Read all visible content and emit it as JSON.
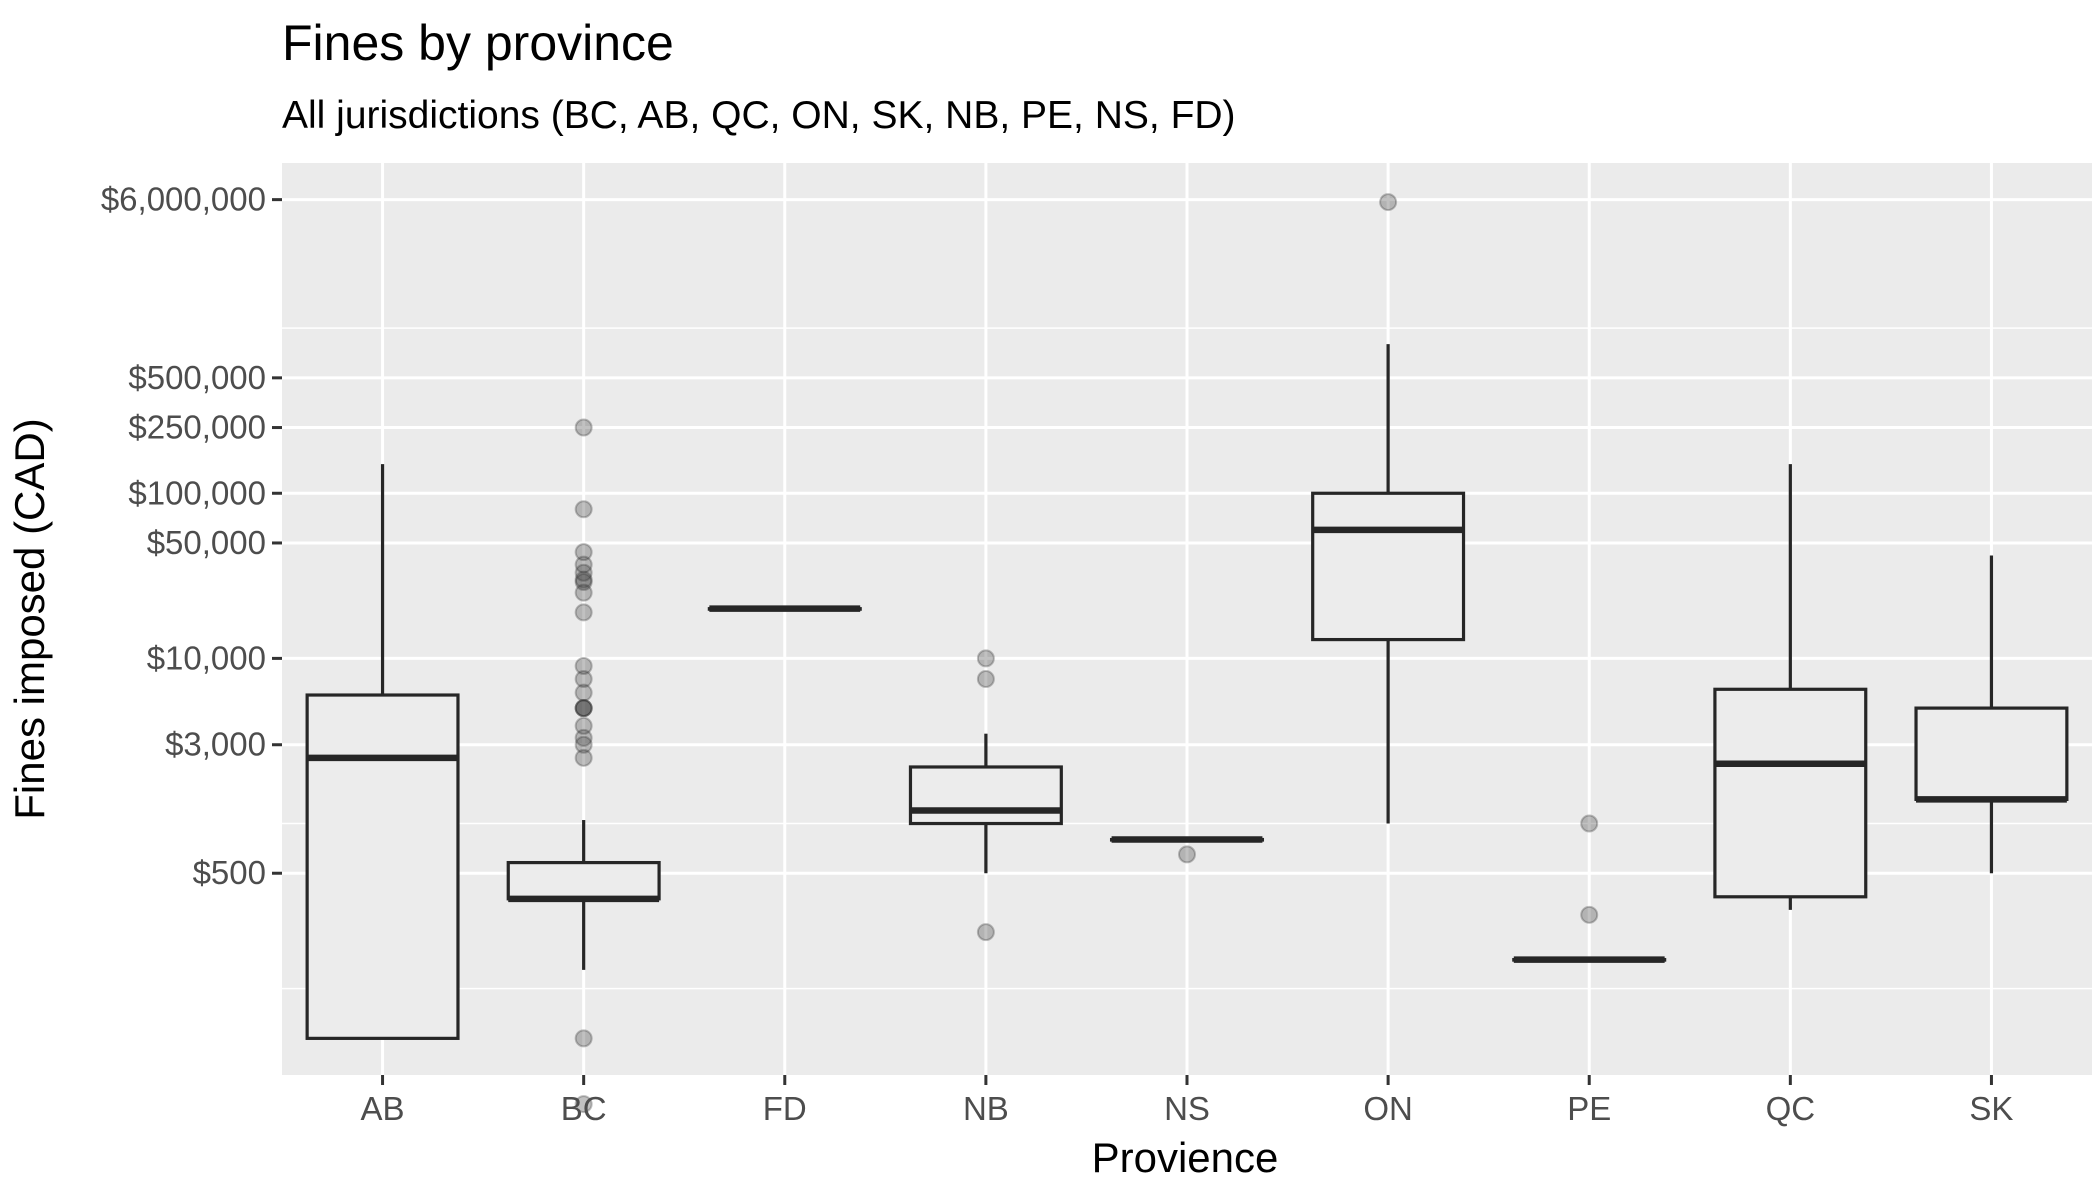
{
  "chart_data": {
    "type": "boxplot",
    "title": "Fines by province",
    "subtitle": "All jurisdictions (BC, AB, QC, ON, SK, NB, PE, NS, FD)",
    "xlabel": "Provience",
    "ylabel": "Fines imposed (CAD)",
    "y_scale": "log10",
    "ylim": [
      30,
      10000000
    ],
    "y_ticks": [
      {
        "value": 500,
        "label": "$500"
      },
      {
        "value": 3000,
        "label": "$3,000"
      },
      {
        "value": 10000,
        "label": "$10,000"
      },
      {
        "value": 50000,
        "label": "$50,000"
      },
      {
        "value": 100000,
        "label": "$100,000"
      },
      {
        "value": 250000,
        "label": "$250,000"
      },
      {
        "value": 500000,
        "label": "$500,000"
      },
      {
        "value": 6000000,
        "label": "$6,000,000"
      }
    ],
    "y_minor_ticks": [
      100,
      1000,
      1000000
    ],
    "categories": [
      "AB",
      "BC",
      "FD",
      "NB",
      "NS",
      "ON",
      "PE",
      "QC",
      "SK"
    ],
    "boxes": [
      {
        "category": "AB",
        "min": 50,
        "q1": 50,
        "median": 2500,
        "q3": 6000,
        "max": 150000,
        "outliers": []
      },
      {
        "category": "BC",
        "min": 130,
        "q1": 350,
        "median": 350,
        "q3": 580,
        "max": 1050,
        "outliers": [
          20,
          50,
          2500,
          3000,
          3300,
          3900,
          5000,
          5000,
          5000,
          6200,
          7500,
          9000,
          19000,
          25000,
          29000,
          30000,
          33000,
          37000,
          44000,
          80000,
          250000
        ]
      },
      {
        "category": "FD",
        "min": 20000,
        "q1": 20000,
        "median": 20000,
        "q3": 20000,
        "max": 20000,
        "outliers": []
      },
      {
        "category": "NB",
        "min": 500,
        "q1": 1000,
        "median": 1200,
        "q3": 2200,
        "max": 3500,
        "outliers": [
          10000,
          7500,
          220
        ]
      },
      {
        "category": "NS",
        "min": 800,
        "q1": 800,
        "median": 800,
        "q3": 800,
        "max": 800,
        "outliers": [
          650
        ]
      },
      {
        "category": "ON",
        "min": 1000,
        "q1": 13000,
        "median": 60000,
        "q3": 100000,
        "max": 800000,
        "outliers": [
          5800000
        ]
      },
      {
        "category": "PE",
        "min": 150,
        "q1": 150,
        "median": 150,
        "q3": 150,
        "max": 150,
        "outliers": [
          1000,
          280
        ]
      },
      {
        "category": "QC",
        "min": 300,
        "q1": 360,
        "median": 2300,
        "q3": 6500,
        "max": 150000,
        "outliers": []
      },
      {
        "category": "SK",
        "min": 500,
        "q1": 1400,
        "median": 1400,
        "q3": 5000,
        "max": 42000,
        "outliers": []
      }
    ],
    "colors": {
      "panel": "#ebebeb",
      "grid": "#ffffff",
      "box_fill": "#ececec",
      "box_stroke": "#262626",
      "outlier": "#333333"
    },
    "grid": true,
    "legend": "none"
  }
}
